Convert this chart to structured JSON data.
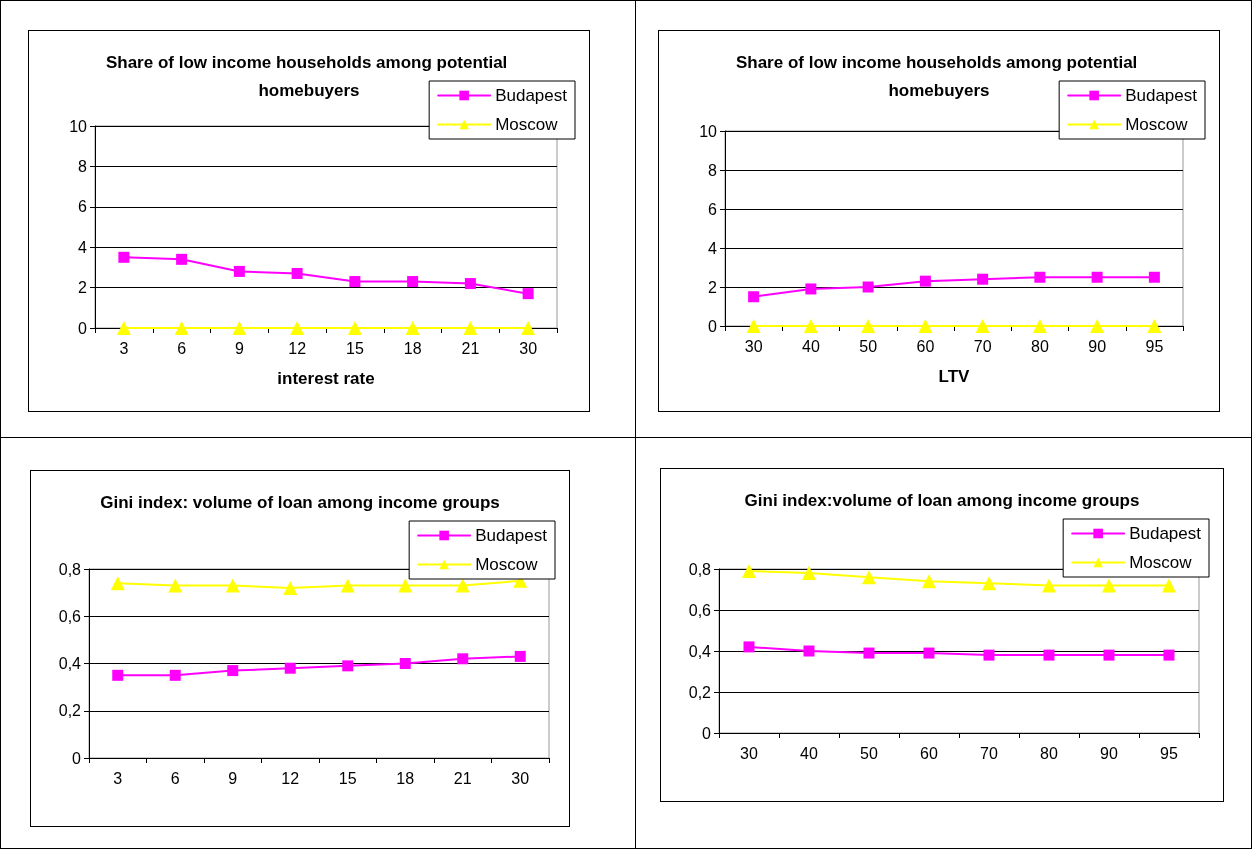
{
  "chart_data": [
    {
      "type": "line",
      "title": "Share of low income households among potential homebuyers",
      "xlabel": "interest rate",
      "categories": [
        "3",
        "6",
        "9",
        "12",
        "15",
        "18",
        "21",
        "30"
      ],
      "series": [
        {
          "name": "Budapest",
          "color": "#ff00ff",
          "marker": "square",
          "values": [
            3.5,
            3.4,
            2.8,
            2.7,
            2.3,
            2.3,
            2.2,
            1.7
          ]
        },
        {
          "name": "Moscow",
          "color": "#ffff00",
          "marker": "triangle",
          "values": [
            0,
            0,
            0,
            0,
            0,
            0,
            0,
            0
          ]
        }
      ],
      "ylim": [
        0,
        10
      ],
      "yticks": [
        0,
        2,
        4,
        6,
        8,
        10
      ],
      "grid": "y",
      "legend": "top right"
    },
    {
      "type": "line",
      "title": "Share of low income households among potential homebuyers",
      "xlabel": "LTV",
      "categories": [
        "30",
        "40",
        "50",
        "60",
        "70",
        "80",
        "90",
        "95"
      ],
      "series": [
        {
          "name": "Budapest",
          "color": "#ff00ff",
          "marker": "square",
          "values": [
            1.5,
            1.9,
            2.0,
            2.3,
            2.4,
            2.5,
            2.5,
            2.5
          ]
        },
        {
          "name": "Moscow",
          "color": "#ffff00",
          "marker": "triangle",
          "values": [
            0,
            0,
            0,
            0,
            0,
            0,
            0,
            0
          ]
        }
      ],
      "ylim": [
        0,
        10
      ],
      "yticks": [
        0,
        2,
        4,
        6,
        8,
        10
      ],
      "grid": "y",
      "legend": "top right"
    },
    {
      "type": "line",
      "title": "Gini index: volume of loan among income groups",
      "categories": [
        "3",
        "6",
        "9",
        "12",
        "15",
        "18",
        "21",
        "30"
      ],
      "series": [
        {
          "name": "Budapest",
          "color": "#ff00ff",
          "marker": "square",
          "values": [
            0.35,
            0.35,
            0.37,
            0.38,
            0.39,
            0.4,
            0.42,
            0.43
          ]
        },
        {
          "name": "Moscow",
          "color": "#ffff00",
          "marker": "triangle",
          "values": [
            0.74,
            0.73,
            0.73,
            0.72,
            0.73,
            0.73,
            0.73,
            0.75
          ]
        }
      ],
      "ylim": [
        0,
        0.8
      ],
      "yticks": [
        0,
        {
          "value": 0.2,
          "label": "0,2"
        },
        {
          "value": 0.4,
          "label": "0,4"
        },
        {
          "value": 0.6,
          "label": "0,6"
        },
        {
          "value": 0.8,
          "label": "0,8"
        }
      ],
      "grid": "y",
      "legend": "top right"
    },
    {
      "type": "line",
      "title": "Gini index:volume of loan among income groups",
      "categories": [
        "30",
        "40",
        "50",
        "60",
        "70",
        "80",
        "90",
        "95"
      ],
      "series": [
        {
          "name": "Budapest",
          "color": "#ff00ff",
          "marker": "square",
          "values": [
            0.42,
            0.4,
            0.39,
            0.39,
            0.38,
            0.38,
            0.38,
            0.38
          ]
        },
        {
          "name": "Moscow",
          "color": "#ffff00",
          "marker": "triangle",
          "values": [
            0.79,
            0.78,
            0.76,
            0.74,
            0.73,
            0.72,
            0.72,
            0.72
          ]
        }
      ],
      "ylim": [
        0,
        0.8
      ],
      "yticks": [
        0,
        {
          "value": 0.2,
          "label": "0,2"
        },
        {
          "value": 0.4,
          "label": "0,4"
        },
        {
          "value": 0.6,
          "label": "0,6"
        },
        {
          "value": 0.8,
          "label": "0,8"
        }
      ],
      "grid": "y",
      "legend": "top right"
    }
  ]
}
